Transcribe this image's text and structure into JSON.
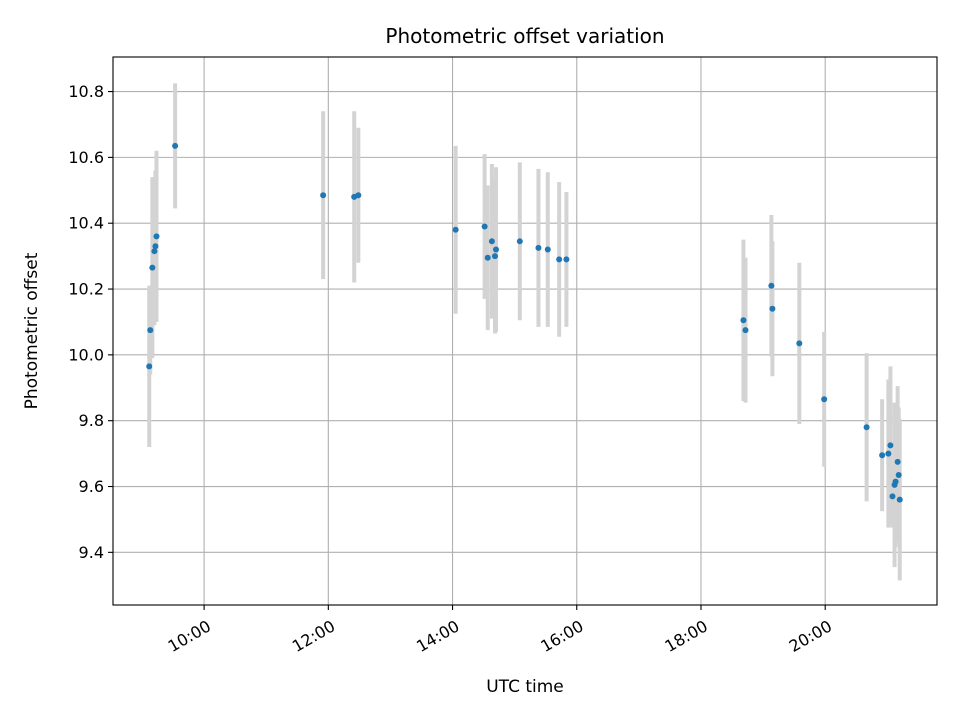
{
  "chart_data": {
    "type": "scatter",
    "title": "Photometric offset variation",
    "xlabel": "UTC time",
    "ylabel": "Photometric offset",
    "x_unit": "hours (UTC)",
    "xlim": [
      "08:32",
      "21:48"
    ],
    "ylim": [
      9.24,
      10.905
    ],
    "x_ticks": [
      "10:00",
      "12:00",
      "14:00",
      "16:00",
      "18:00",
      "20:00"
    ],
    "y_ticks": [
      9.4,
      9.6,
      9.8,
      10.0,
      10.2,
      10.4,
      10.6,
      10.8
    ],
    "grid": true,
    "colors": {
      "point": "#1f77b4",
      "errorbar": "#d3d3d3",
      "grid": "#b0b0b0"
    },
    "points": [
      {
        "x": "09:07",
        "y": 9.965,
        "err": 0.245
      },
      {
        "x": "09:08",
        "y": 10.075,
        "err": 0.135
      },
      {
        "x": "09:10",
        "y": 10.265,
        "err": 0.275
      },
      {
        "x": "09:12",
        "y": 10.315,
        "err": 0.225
      },
      {
        "x": "09:13",
        "y": 10.33,
        "err": 0.23
      },
      {
        "x": "09:14",
        "y": 10.36,
        "err": 0.26
      },
      {
        "x": "09:32",
        "y": 10.635,
        "err": 0.19
      },
      {
        "x": "11:55",
        "y": 10.485,
        "err": 0.255
      },
      {
        "x": "12:25",
        "y": 10.48,
        "err": 0.26
      },
      {
        "x": "12:29",
        "y": 10.485,
        "err": 0.205
      },
      {
        "x": "14:03",
        "y": 10.38,
        "err": 0.255
      },
      {
        "x": "14:31",
        "y": 10.39,
        "err": 0.22
      },
      {
        "x": "14:34",
        "y": 10.295,
        "err": 0.22
      },
      {
        "x": "14:38",
        "y": 10.345,
        "err": 0.235
      },
      {
        "x": "14:41",
        "y": 10.3,
        "err": 0.235
      },
      {
        "x": "14:42",
        "y": 10.32,
        "err": 0.25
      },
      {
        "x": "15:05",
        "y": 10.345,
        "err": 0.24
      },
      {
        "x": "15:23",
        "y": 10.325,
        "err": 0.24
      },
      {
        "x": "15:32",
        "y": 10.32,
        "err": 0.235
      },
      {
        "x": "15:43",
        "y": 10.29,
        "err": 0.235
      },
      {
        "x": "15:50",
        "y": 10.29,
        "err": 0.205
      },
      {
        "x": "18:41",
        "y": 10.105,
        "err": 0.245
      },
      {
        "x": "18:43",
        "y": 10.075,
        "err": 0.22
      },
      {
        "x": "19:08",
        "y": 10.21,
        "err": 0.215
      },
      {
        "x": "19:09",
        "y": 10.14,
        "err": 0.205
      },
      {
        "x": "19:35",
        "y": 10.035,
        "err": 0.245
      },
      {
        "x": "19:59",
        "y": 9.865,
        "err": 0.205
      },
      {
        "x": "20:40",
        "y": 9.78,
        "err": 0.225
      },
      {
        "x": "20:55",
        "y": 9.695,
        "err": 0.17
      },
      {
        "x": "21:01",
        "y": 9.7,
        "err": 0.225
      },
      {
        "x": "21:03",
        "y": 9.725,
        "err": 0.24
      },
      {
        "x": "21:05",
        "y": 9.57,
        "err": 0.095
      },
      {
        "x": "21:07",
        "y": 9.605,
        "err": 0.25
      },
      {
        "x": "21:08",
        "y": 9.615,
        "err": 0.2
      },
      {
        "x": "21:10",
        "y": 9.675,
        "err": 0.23
      },
      {
        "x": "21:11",
        "y": 9.635,
        "err": 0.205
      },
      {
        "x": "21:12",
        "y": 9.56,
        "err": 0.245
      }
    ]
  }
}
